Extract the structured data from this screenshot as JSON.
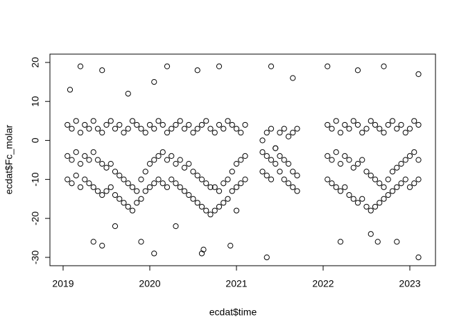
{
  "chart_data": {
    "type": "scatter",
    "x_label": "ecdat$time",
    "y_label": "ecdat$Fc_molar",
    "color": "#000000",
    "xlim": [
      2018.848,
      2023.296
    ],
    "ylim": [
      -32.14,
      22.14
    ],
    "xticks": [
      2019,
      2020,
      2021,
      2022,
      2023
    ],
    "yticks": [
      -30,
      -20,
      -10,
      0,
      10,
      20
    ],
    "x": [
      2019.05,
      2019.1,
      2019.15,
      2019.2,
      2019.25,
      2019.3,
      2019.35,
      2019.4,
      2019.45,
      2019.5,
      2019.55,
      2019.6,
      2019.65,
      2019.7,
      2019.75,
      2019.8,
      2019.85,
      2019.9,
      2019.95,
      2020,
      2020.05,
      2020.1,
      2020.15,
      2020.2,
      2020.25,
      2020.3,
      2020.35,
      2020.4,
      2020.45,
      2020.5,
      2020.55,
      2020.6,
      2020.65,
      2020.7,
      2020.75,
      2020.8,
      2020.85,
      2020.9,
      2020.95,
      2021,
      2021.05,
      2021.1,
      2021.3,
      2021.35,
      2021.4,
      2021.45,
      2021.5,
      2021.55,
      2021.6,
      2021.65,
      2021.7,
      2022.05,
      2022.1,
      2022.15,
      2022.2,
      2022.25,
      2022.3,
      2022.35,
      2022.4,
      2022.45,
      2022.5,
      2022.55,
      2022.6,
      2022.65,
      2022.7,
      2022.75,
      2022.8,
      2022.85,
      2022.9,
      2022.95,
      2023,
      2023.05,
      2023.1,
      2019.05,
      2019.1,
      2019.15,
      2019.2,
      2019.25,
      2019.3,
      2019.35,
      2019.4,
      2019.45,
      2019.5,
      2019.55,
      2019.6,
      2019.65,
      2019.7,
      2019.75,
      2019.8,
      2019.85,
      2019.9,
      2019.95,
      2020,
      2020.05,
      2020.1,
      2020.15,
      2020.2,
      2020.25,
      2020.3,
      2020.35,
      2020.4,
      2020.45,
      2020.5,
      2020.55,
      2020.6,
      2020.65,
      2020.7,
      2020.75,
      2020.8,
      2020.85,
      2020.9,
      2020.95,
      2021,
      2021.05,
      2021.1,
      2021.3,
      2021.35,
      2021.4,
      2021.45,
      2021.5,
      2021.55,
      2021.6,
      2021.65,
      2021.7,
      2022.05,
      2022.1,
      2022.15,
      2022.2,
      2022.25,
      2022.3,
      2022.35,
      2022.4,
      2022.45,
      2022.5,
      2022.55,
      2022.6,
      2022.65,
      2022.7,
      2022.75,
      2022.8,
      2022.85,
      2022.9,
      2022.95,
      2023,
      2023.05,
      2023.1,
      2019.05,
      2019.1,
      2019.15,
      2019.2,
      2019.25,
      2019.3,
      2019.35,
      2019.4,
      2019.45,
      2019.5,
      2019.55,
      2019.6,
      2019.65,
      2019.7,
      2019.75,
      2019.8,
      2019.85,
      2019.9,
      2019.95,
      2020,
      2020.05,
      2020.1,
      2020.15,
      2020.2,
      2020.25,
      2020.3,
      2020.35,
      2020.4,
      2020.45,
      2020.5,
      2020.55,
      2020.6,
      2020.65,
      2020.7,
      2020.75,
      2020.8,
      2020.85,
      2020.9,
      2020.95,
      2021,
      2021.05,
      2021.1,
      2021.3,
      2021.35,
      2021.4,
      2021.45,
      2021.5,
      2021.55,
      2021.6,
      2021.65,
      2021.7,
      2022.05,
      2022.1,
      2022.15,
      2022.2,
      2022.25,
      2022.3,
      2022.35,
      2022.4,
      2022.45,
      2022.5,
      2022.55,
      2022.6,
      2022.65,
      2022.7,
      2022.75,
      2022.8,
      2022.85,
      2022.9,
      2022.95,
      2023,
      2023.05,
      2023.1,
      2019.08,
      2019.2,
      2019.35,
      2019.45,
      2019.6,
      2019.75,
      2019.9,
      2020.05,
      2020.2,
      2020.3,
      2020.55,
      2020.62,
      2020.8,
      2020.93,
      2021.0,
      2021.35,
      2021.4,
      2021.65,
      2022.05,
      2022.2,
      2022.4,
      2022.55,
      2022.7,
      2022.85,
      2023.1,
      2019.45,
      2020.05,
      2020.6,
      2022.63,
      2023.1
    ],
    "values": [
      4,
      3,
      5,
      2,
      4,
      3,
      5,
      3,
      2,
      4,
      5,
      3,
      4,
      2,
      3,
      5,
      4,
      3,
      2,
      4,
      3,
      5,
      4,
      2,
      3,
      4,
      5,
      3,
      4,
      2,
      3,
      4,
      5,
      3,
      2,
      4,
      3,
      5,
      4,
      3,
      2,
      4,
      0,
      2,
      3,
      -2,
      2,
      3,
      1,
      2,
      3,
      4,
      3,
      5,
      2,
      4,
      3,
      5,
      4,
      2,
      3,
      5,
      4,
      3,
      2,
      4,
      5,
      3,
      4,
      2,
      3,
      5,
      4,
      -4,
      -5,
      -3,
      -6,
      -4,
      -5,
      -3,
      -5,
      -6,
      -7,
      -6,
      -8,
      -9,
      -10,
      -11,
      -12,
      -13,
      -10,
      -8,
      -6,
      -5,
      -4,
      -3,
      -5,
      -4,
      -6,
      -5,
      -7,
      -6,
      -8,
      -9,
      -10,
      -11,
      -12,
      -12,
      -13,
      -11,
      -10,
      -8,
      -6,
      -5,
      -4,
      -3,
      -4,
      -5,
      -2,
      -4,
      -5,
      -6,
      -8,
      -9,
      -4,
      -5,
      -3,
      -6,
      -4,
      -5,
      -7,
      -6,
      -5,
      -8,
      -9,
      -10,
      -11,
      -12,
      -10,
      -8,
      -7,
      -6,
      -5,
      -4,
      -3,
      -5,
      -10,
      -11,
      -9,
      -12,
      -10,
      -11,
      -12,
      -13,
      -14,
      -13,
      -12,
      -14,
      -15,
      -16,
      -17,
      -18,
      -16,
      -15,
      -13,
      -12,
      -11,
      -10,
      -11,
      -12,
      -10,
      -11,
      -12,
      -13,
      -14,
      -15,
      -16,
      -17,
      -18,
      -19,
      -18,
      -17,
      -16,
      -15,
      -13,
      -12,
      -11,
      -10,
      -8,
      -9,
      -10,
      -6,
      -8,
      -10,
      -11,
      -12,
      -13,
      -10,
      -11,
      -12,
      -13,
      -12,
      -14,
      -15,
      -16,
      -15,
      -17,
      -18,
      -17,
      -16,
      -15,
      -14,
      -13,
      -12,
      -11,
      -10,
      -12,
      -11,
      -10,
      13,
      19,
      -26,
      18,
      -22,
      12,
      -26,
      -29,
      19,
      -22,
      18,
      -28,
      19,
      -27,
      -18,
      -30,
      19,
      16,
      19,
      -26,
      18,
      -24,
      19,
      -26,
      -30,
      -27,
      15,
      -29,
      -26,
      17
    ]
  }
}
